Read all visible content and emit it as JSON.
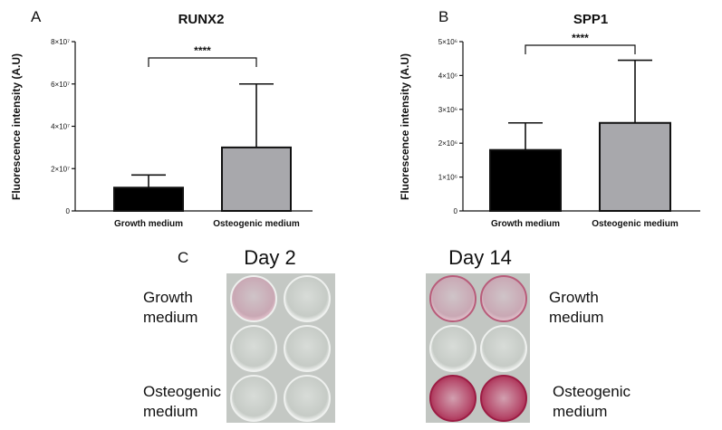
{
  "chart_data": [
    {
      "type": "bar",
      "panel": "A",
      "title": "RUNX2",
      "ylabel": "Fluorescence intensity (A.U)",
      "categories": [
        "Growth medium",
        "Osteogenic medium"
      ],
      "values": [
        11000000,
        30000000
      ],
      "error_upper": [
        17000000,
        60000000
      ],
      "ylim": [
        0,
        80000000
      ],
      "yticks": [
        0,
        20000000,
        40000000,
        60000000,
        80000000
      ],
      "ytick_labels": [
        "0",
        "2×10⁷",
        "4×10⁷",
        "6×10⁷",
        "8×10⁷"
      ],
      "bar_colors": [
        "#000000",
        "#a8a8ac"
      ],
      "significance": "****"
    },
    {
      "type": "bar",
      "panel": "B",
      "title": "SPP1",
      "ylabel": "Fluorescence intensity (A.U)",
      "categories": [
        "Growth medium",
        "Osteogenic medium"
      ],
      "values": [
        1800000,
        2600000
      ],
      "error_upper": [
        2600000,
        4450000
      ],
      "ylim": [
        0,
        5000000
      ],
      "yticks": [
        0,
        1000000,
        2000000,
        3000000,
        4000000,
        5000000
      ],
      "ytick_labels": [
        "0",
        "1×10⁶",
        "2×10⁶",
        "3×10⁶",
        "4×10⁶",
        "5×10⁶"
      ],
      "bar_colors": [
        "#000000",
        "#a8a8ac"
      ],
      "significance": "****"
    }
  ],
  "panel_c": {
    "letter": "C",
    "day2": "Day 2",
    "day14": "Day 14",
    "growth_line1": "Growth",
    "growth_line2": "medium",
    "osteo_line1": "Osteogenic",
    "osteo_line2": "medium"
  }
}
